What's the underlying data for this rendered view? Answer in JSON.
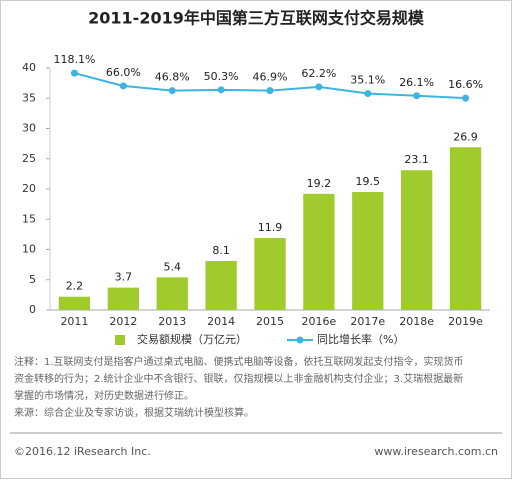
{
  "chart_data": {
    "type": "bar",
    "title": "2011-2019年中国第三方互联网支付交易规模",
    "categories": [
      "2011",
      "2012",
      "2013",
      "2014",
      "2015",
      "2016e",
      "2017e",
      "2018e",
      "2019e"
    ],
    "series": [
      {
        "name": "交易额规模（万亿元）",
        "color": "#9fcb2d",
        "type": "bar",
        "values": [
          2.2,
          3.7,
          5.4,
          8.1,
          11.9,
          19.2,
          19.5,
          23.1,
          26.9
        ]
      },
      {
        "name": "同比增长率（%）",
        "color": "#3db5e0",
        "type": "line",
        "axis": "y2",
        "values": [
          118.1,
          66.0,
          46.8,
          50.3,
          46.9,
          62.2,
          35.1,
          26.1,
          16.6
        ],
        "value_labels": [
          "118.1%",
          "66.0%",
          "46.8%",
          "50.3%",
          "46.9%",
          "62.2%",
          "35.1%",
          "26.1%",
          "16.6%"
        ]
      }
    ],
    "ylim": [
      0,
      40
    ],
    "yticks": [
      0,
      5,
      10,
      15,
      20,
      25,
      30,
      35,
      40
    ],
    "y2lim": [
      -845,
      139
    ],
    "notes": [
      "注释：1.互联网支付是指客户通过桌式电脑、便携式电脑等设备，依托互联网发起支付指令，实现货币",
      "资金转移的行为；2.统计企业中不含银行、银联，仅指规模以上非金融机构支付企业；3.艾瑞根据最新",
      "掌握的市场情况，对历史数据进行修正。",
      "来源：综合企业及专家访谈，根据艾瑞统计模型核算。"
    ],
    "footer_left": "©2016.12 iResearch Inc.",
    "footer_right": "www.iresearch.com.cn"
  }
}
